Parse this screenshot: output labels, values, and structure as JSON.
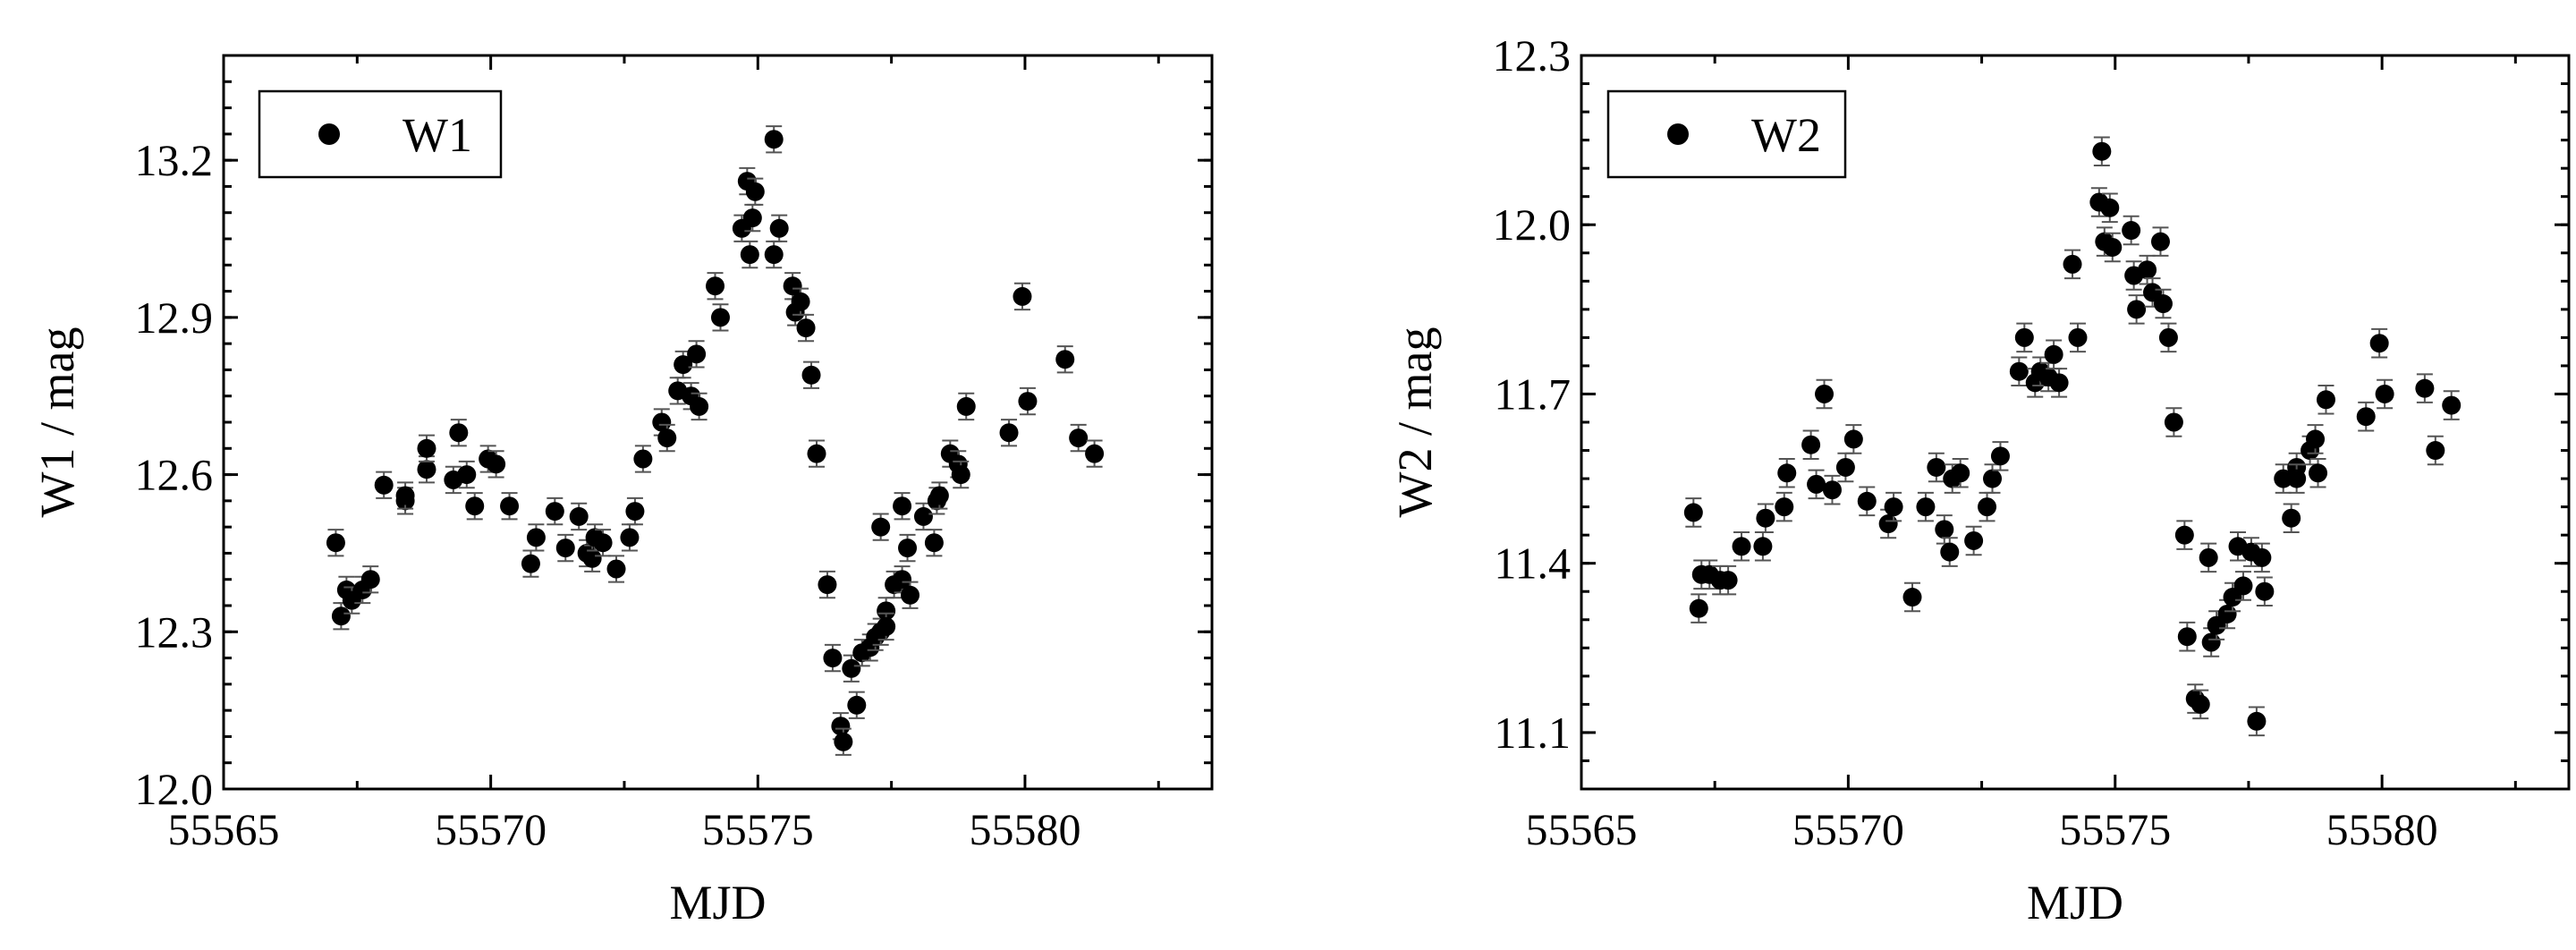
{
  "chart_data": [
    {
      "type": "scatter",
      "xlabel": "MJD",
      "ylabel": "W1 / mag",
      "xlim": [
        55565,
        55583.5
      ],
      "ylim": [
        12.0,
        13.4
      ],
      "xticks": [
        "55565",
        "55570",
        "55575",
        "55580"
      ],
      "yticks": [
        "12.0",
        "12.3",
        "12.6",
        "12.9",
        "13.2"
      ],
      "legend": {
        "position": "top-left",
        "entries": [
          "W1"
        ]
      },
      "series": [
        {
          "name": "W1",
          "points": [
            [
              55567.1,
              12.47
            ],
            [
              55567.2,
              12.33
            ],
            [
              55567.3,
              12.38
            ],
            [
              55567.4,
              12.36
            ],
            [
              55567.6,
              12.38
            ],
            [
              55567.75,
              12.4
            ],
            [
              55568.0,
              12.58
            ],
            [
              55568.4,
              12.55
            ],
            [
              55568.4,
              12.56
            ],
            [
              55568.8,
              12.61
            ],
            [
              55568.8,
              12.65
            ],
            [
              55569.3,
              12.59
            ],
            [
              55569.4,
              12.68
            ],
            [
              55569.55,
              12.6
            ],
            [
              55569.7,
              12.54
            ],
            [
              55569.95,
              12.63
            ],
            [
              55570.1,
              12.62
            ],
            [
              55570.35,
              12.54
            ],
            [
              55570.75,
              12.43
            ],
            [
              55570.85,
              12.48
            ],
            [
              55571.2,
              12.53
            ],
            [
              55571.4,
              12.46
            ],
            [
              55571.65,
              12.52
            ],
            [
              55571.8,
              12.45
            ],
            [
              55571.9,
              12.44
            ],
            [
              55571.95,
              12.48
            ],
            [
              55572.1,
              12.47
            ],
            [
              55572.35,
              12.42
            ],
            [
              55572.6,
              12.48
            ],
            [
              55572.7,
              12.53
            ],
            [
              55572.85,
              12.63
            ],
            [
              55573.2,
              12.7
            ],
            [
              55573.3,
              12.67
            ],
            [
              55573.5,
              12.76
            ],
            [
              55573.6,
              12.81
            ],
            [
              55573.75,
              12.75
            ],
            [
              55573.85,
              12.83
            ],
            [
              55573.9,
              12.73
            ],
            [
              55574.2,
              12.96
            ],
            [
              55574.3,
              12.9
            ],
            [
              55574.7,
              13.07
            ],
            [
              55574.8,
              13.16
            ],
            [
              55574.85,
              13.02
            ],
            [
              55574.9,
              13.09
            ],
            [
              55574.95,
              13.14
            ],
            [
              55575.3,
              13.24
            ],
            [
              55575.3,
              13.02
            ],
            [
              55575.4,
              13.07
            ],
            [
              55575.65,
              12.96
            ],
            [
              55575.7,
              12.91
            ],
            [
              55575.8,
              12.93
            ],
            [
              55575.9,
              12.88
            ],
            [
              55576.0,
              12.79
            ],
            [
              55576.1,
              12.64
            ],
            [
              55576.3,
              12.39
            ],
            [
              55576.4,
              12.25
            ],
            [
              55576.55,
              12.12
            ],
            [
              55576.6,
              12.09
            ],
            [
              55576.75,
              12.23
            ],
            [
              55576.85,
              12.16
            ],
            [
              55576.95,
              12.26
            ],
            [
              55577.1,
              12.27
            ],
            [
              55577.2,
              12.29
            ],
            [
              55577.3,
              12.3
            ],
            [
              55577.3,
              12.5
            ],
            [
              55577.4,
              12.34
            ],
            [
              55577.4,
              12.31
            ],
            [
              55577.55,
              12.39
            ],
            [
              55577.7,
              12.4
            ],
            [
              55577.7,
              12.54
            ],
            [
              55577.8,
              12.46
            ],
            [
              55577.85,
              12.37
            ],
            [
              55578.1,
              12.52
            ],
            [
              55578.3,
              12.47
            ],
            [
              55578.35,
              12.55
            ],
            [
              55578.4,
              12.56
            ],
            [
              55578.6,
              12.64
            ],
            [
              55578.75,
              12.62
            ],
            [
              55578.8,
              12.6
            ],
            [
              55578.9,
              12.73
            ],
            [
              55579.7,
              12.68
            ],
            [
              55579.95,
              12.94
            ],
            [
              55580.05,
              12.74
            ],
            [
              55580.75,
              12.82
            ],
            [
              55581.0,
              12.67
            ],
            [
              55581.3,
              12.64
            ]
          ]
        }
      ]
    },
    {
      "type": "scatter",
      "xlabel": "MJD",
      "ylabel": "W2 / mag",
      "xlim": [
        55565,
        55583.5
      ],
      "ylim": [
        11.0,
        12.3
      ],
      "xticks": [
        "55565",
        "55570",
        "55575",
        "55580"
      ],
      "yticks": [
        "11.1",
        "11.4",
        "11.7",
        "12.0",
        "12.3"
      ],
      "legend": {
        "position": "top-left",
        "entries": [
          "W2"
        ]
      },
      "series": [
        {
          "name": "W2",
          "points": [
            [
              55567.1,
              11.49
            ],
            [
              55567.2,
              11.32
            ],
            [
              55567.25,
              11.38
            ],
            [
              55567.4,
              11.38
            ],
            [
              55567.6,
              11.37
            ],
            [
              55567.75,
              11.37
            ],
            [
              55568.0,
              11.43
            ],
            [
              55568.4,
              11.43
            ],
            [
              55568.45,
              11.48
            ],
            [
              55568.8,
              11.5
            ],
            [
              55568.85,
              11.56
            ],
            [
              55569.3,
              11.61
            ],
            [
              55569.4,
              11.54
            ],
            [
              55569.55,
              11.7
            ],
            [
              55569.7,
              11.53
            ],
            [
              55569.95,
              11.57
            ],
            [
              55570.1,
              11.62
            ],
            [
              55570.35,
              11.51
            ],
            [
              55570.75,
              11.47
            ],
            [
              55570.85,
              11.5
            ],
            [
              55571.2,
              11.34
            ],
            [
              55571.45,
              11.5
            ],
            [
              55571.65,
              11.57
            ],
            [
              55571.8,
              11.46
            ],
            [
              55571.9,
              11.42
            ],
            [
              55571.95,
              11.55
            ],
            [
              55572.1,
              11.56
            ],
            [
              55572.35,
              11.44
            ],
            [
              55572.6,
              11.5
            ],
            [
              55572.7,
              11.55
            ],
            [
              55572.85,
              11.59
            ],
            [
              55573.2,
              11.74
            ],
            [
              55573.3,
              11.8
            ],
            [
              55573.5,
              11.72
            ],
            [
              55573.6,
              11.74
            ],
            [
              55573.75,
              11.73
            ],
            [
              55573.85,
              11.77
            ],
            [
              55573.95,
              11.72
            ],
            [
              55574.2,
              11.93
            ],
            [
              55574.3,
              11.8
            ],
            [
              55574.7,
              12.04
            ],
            [
              55574.75,
              12.13
            ],
            [
              55574.8,
              11.97
            ],
            [
              55574.9,
              12.03
            ],
            [
              55574.95,
              11.96
            ],
            [
              55575.3,
              11.99
            ],
            [
              55575.35,
              11.91
            ],
            [
              55575.4,
              11.85
            ],
            [
              55575.6,
              11.92
            ],
            [
              55575.7,
              11.88
            ],
            [
              55575.85,
              11.97
            ],
            [
              55575.9,
              11.86
            ],
            [
              55576.0,
              11.8
            ],
            [
              55576.1,
              11.65
            ],
            [
              55576.3,
              11.45
            ],
            [
              55576.35,
              11.27
            ],
            [
              55576.5,
              11.16
            ],
            [
              55576.6,
              11.15
            ],
            [
              55576.75,
              11.41
            ],
            [
              55576.8,
              11.26
            ],
            [
              55576.9,
              11.29
            ],
            [
              55577.1,
              11.31
            ],
            [
              55577.2,
              11.34
            ],
            [
              55577.3,
              11.43
            ],
            [
              55577.4,
              11.36
            ],
            [
              55577.55,
              11.42
            ],
            [
              55577.65,
              11.12
            ],
            [
              55577.75,
              11.41
            ],
            [
              55577.8,
              11.35
            ],
            [
              55578.15,
              11.55
            ],
            [
              55578.3,
              11.48
            ],
            [
              55578.4,
              11.57
            ],
            [
              55578.4,
              11.55
            ],
            [
              55578.65,
              11.6
            ],
            [
              55578.75,
              11.62
            ],
            [
              55578.8,
              11.56
            ],
            [
              55578.95,
              11.69
            ],
            [
              55579.7,
              11.66
            ],
            [
              55579.95,
              11.79
            ],
            [
              55580.05,
              11.7
            ],
            [
              55580.8,
              11.71
            ],
            [
              55581.0,
              11.6
            ],
            [
              55581.3,
              11.68
            ]
          ]
        }
      ]
    }
  ]
}
